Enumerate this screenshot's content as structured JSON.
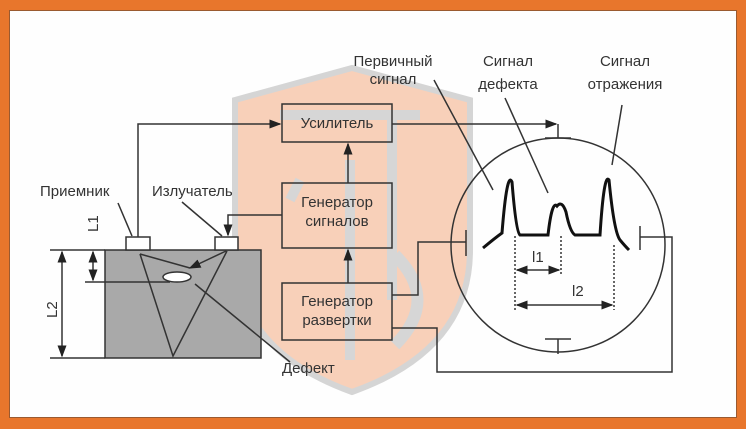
{
  "colors": {
    "frame": "#e8762c",
    "watermark_fill": "#f7c8ad",
    "watermark_stroke": "#c9c9c9",
    "specimen": "#a9a9a9",
    "line": "#333333"
  },
  "blocks": {
    "amplifier": "Усилитель",
    "signal_generator": [
      "Генератор",
      "сигналов"
    ],
    "sweep_generator": [
      "Генератор",
      "развертки"
    ]
  },
  "labels": {
    "receiver": "Приемник",
    "emitter": "Излучатель",
    "defect": "Дефект",
    "primary_signal": [
      "Первичный",
      "сигнал"
    ],
    "defect_signal": [
      "Сигнал",
      "дефекта"
    ],
    "reflection_signal": [
      "Сигнал",
      "отражения"
    ],
    "L1": "L1",
    "L2": "L2",
    "l1": "l1",
    "l2": "l2"
  },
  "watermark": "shield-logo"
}
